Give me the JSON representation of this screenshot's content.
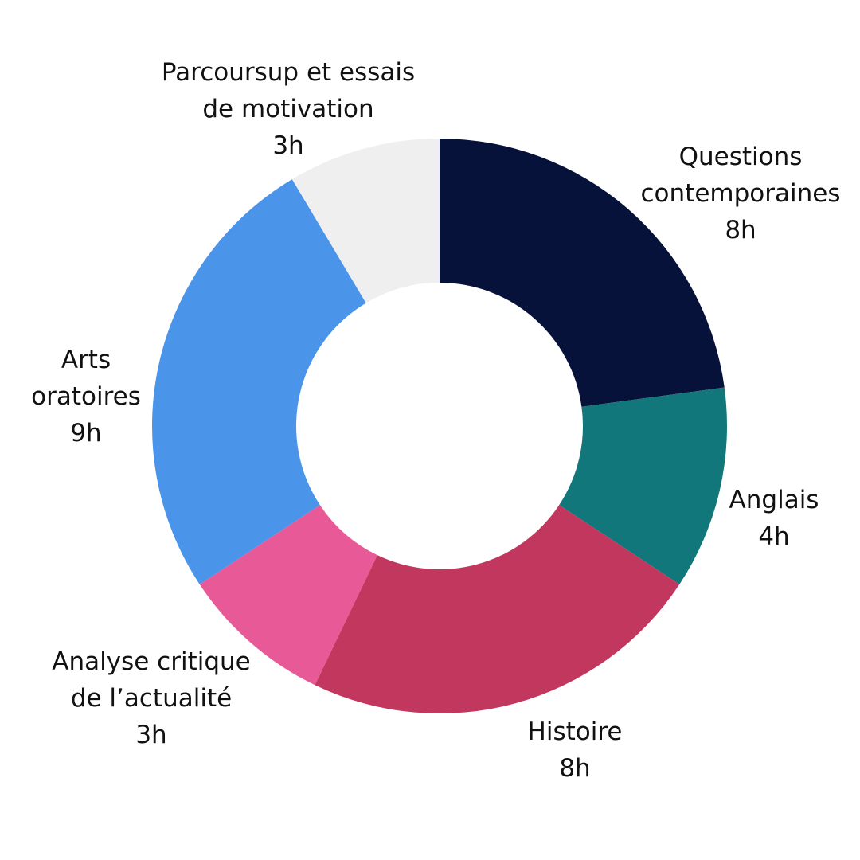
{
  "chart_data": {
    "type": "pie",
    "donut": true,
    "title": "",
    "unit": "h",
    "slices": [
      {
        "name": "Questions contemporaines",
        "label_lines": [
          "Questions",
          "contemporaines"
        ],
        "value": 8,
        "value_label": "8h",
        "color": "#07123a"
      },
      {
        "name": "Anglais",
        "label_lines": [
          "Anglais"
        ],
        "value": 4,
        "value_label": "4h",
        "color": "#12777a"
      },
      {
        "name": "Histoire",
        "label_lines": [
          "Histoire"
        ],
        "value": 8,
        "value_label": "8h",
        "color": "#c2375e"
      },
      {
        "name": "Analyse critique de l’actualité",
        "label_lines": [
          "Analyse critique",
          "de l’actualité"
        ],
        "value": 3,
        "value_label": "3h",
        "color": "#e85a97"
      },
      {
        "name": "Arts oratoires",
        "label_lines": [
          "Arts",
          "oratoires"
        ],
        "value": 9,
        "value_label": "9h",
        "color": "#4a94ea"
      },
      {
        "name": "Parcoursup et essais de motivation",
        "label_lines": [
          "Parcoursup et essais",
          "de motivation"
        ],
        "value": 3,
        "value_label": "3h",
        "color": "#efefef"
      }
    ],
    "start": "12 o'clock",
    "direction": "clockwise",
    "legend": "none (labels outside slices)"
  }
}
